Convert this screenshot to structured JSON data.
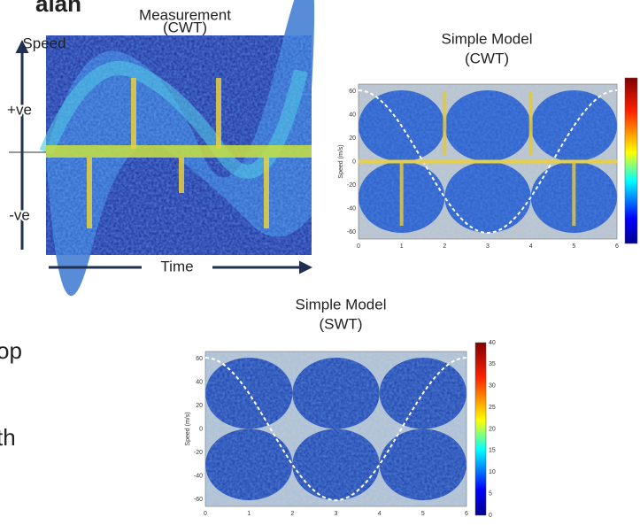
{
  "header": {
    "title_fragment": "alan"
  },
  "left_text": [
    "op",
    "th"
  ],
  "measurement": {
    "title": [
      "Measurement",
      "(CWT)"
    ],
    "speed_label": "Speed",
    "positive": "+ve",
    "negative": "-ve",
    "time_label": "Time"
  },
  "cwt_model": {
    "title": [
      "Simple Model",
      "(CWT)"
    ],
    "y_label": "Speed (m/s)",
    "yticks": [
      60,
      40,
      20,
      0,
      -20,
      -40,
      -60
    ],
    "xticks": [
      0,
      1,
      2,
      3,
      4,
      5,
      6
    ]
  },
  "swt_model": {
    "title": [
      "Simple Model",
      "(SWT)"
    ],
    "y_label": "Speed (m/s)",
    "yticks": [
      60,
      40,
      20,
      0,
      -20,
      -40,
      -60
    ],
    "xticks": [
      0,
      1,
      2,
      3,
      4,
      5,
      6
    ],
    "colorbar_ticks": [
      40,
      35,
      30,
      25,
      20,
      15,
      10,
      5,
      0
    ]
  }
}
